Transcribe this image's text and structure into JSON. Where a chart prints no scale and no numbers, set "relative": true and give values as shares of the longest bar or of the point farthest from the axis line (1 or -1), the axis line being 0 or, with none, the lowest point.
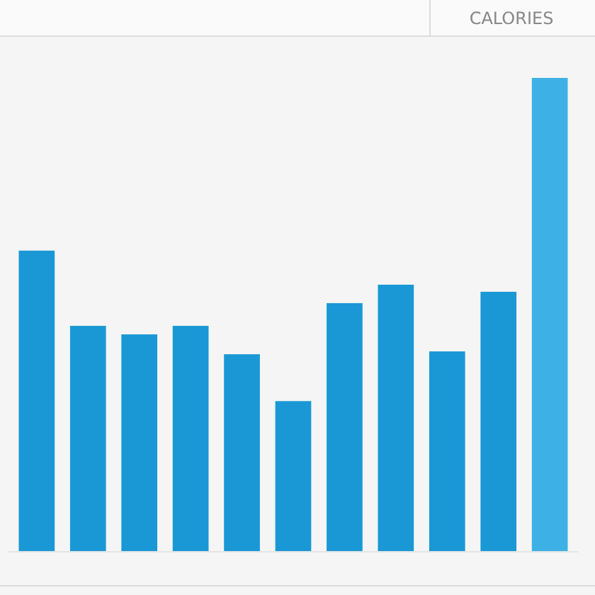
{
  "chart_data": {
    "type": "bar",
    "title": "CALORIES",
    "relative": true,
    "categories": [
      null,
      null,
      null,
      null,
      null,
      null,
      null,
      null,
      null,
      null,
      null
    ],
    "values": [
      0.635,
      0.476,
      0.458,
      0.476,
      0.416,
      0.317,
      0.524,
      0.563,
      0.422,
      0.548,
      1
    ],
    "colors": [
      "#1a98d5",
      "#1a98d5",
      "#1a98d5",
      "#1a98d5",
      "#1a98d5",
      "#1a98d5",
      "#1a98d5",
      "#1a98d5",
      "#1a98d5",
      "#1a98d5",
      "#3db1e6"
    ]
  }
}
